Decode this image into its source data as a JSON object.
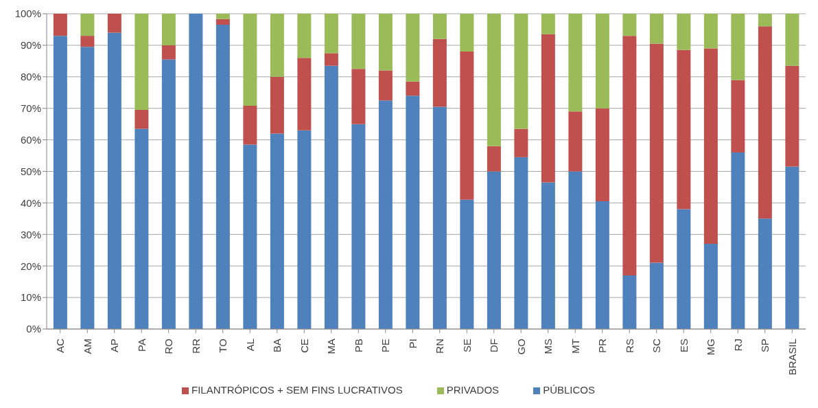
{
  "chart_data": {
    "type": "bar",
    "stacked": true,
    "categories": [
      "AC",
      "AM",
      "AP",
      "PA",
      "RO",
      "RR",
      "TO",
      "AL",
      "BA",
      "CE",
      "MA",
      "PB",
      "PE",
      "PI",
      "RN",
      "SE",
      "DF",
      "GO",
      "MS",
      "MT",
      "PR",
      "RS",
      "SC",
      "ES",
      "MG",
      "RJ",
      "SP",
      "BRASIL"
    ],
    "series": [
      {
        "name": "PÚBLICOS",
        "color": "#4f81bd",
        "values": [
          93,
          89.5,
          94,
          63.5,
          85.5,
          100,
          96.5,
          58.5,
          62,
          63,
          83.5,
          65,
          72.5,
          74,
          70.5,
          41,
          50,
          54.5,
          46.5,
          50,
          40.5,
          17,
          21,
          38,
          27,
          56,
          35,
          51.5
        ]
      },
      {
        "name": "FILANTRÓPICOS + SEM FINS LUCRATIVOS",
        "color": "#c0504d",
        "values": [
          7,
          3.5,
          6,
          6,
          4.5,
          0,
          1.8,
          12.3,
          18,
          23,
          4,
          17.5,
          9.5,
          4.5,
          21.5,
          47,
          8,
          9,
          47,
          19,
          29.5,
          76,
          69.5,
          50.5,
          62,
          23,
          61,
          32
        ]
      },
      {
        "name": "PRIVADOS",
        "color": "#9bbb59",
        "values": [
          0,
          7,
          0,
          30.5,
          10,
          0,
          1.7,
          29.2,
          20,
          14,
          12.5,
          17.5,
          18,
          21.5,
          8,
          12,
          42,
          36.5,
          6.5,
          31,
          30,
          7,
          9.5,
          11.5,
          11,
          21,
          4,
          16.5
        ]
      }
    ],
    "ylim": [
      0,
      100
    ],
    "yticks": [
      {
        "value": 0,
        "label": "0%"
      },
      {
        "value": 10,
        "label": "10%"
      },
      {
        "value": 20,
        "label": "20%"
      },
      {
        "value": 30,
        "label": "30%"
      },
      {
        "value": 40,
        "label": "40%"
      },
      {
        "value": 50,
        "label": "50%"
      },
      {
        "value": 60,
        "label": "60%"
      },
      {
        "value": 70,
        "label": "70%"
      },
      {
        "value": 80,
        "label": "80%"
      },
      {
        "value": 90,
        "label": "90%"
      },
      {
        "value": 100,
        "label": "100%"
      }
    ],
    "grid": "y",
    "legend": "bottom"
  }
}
